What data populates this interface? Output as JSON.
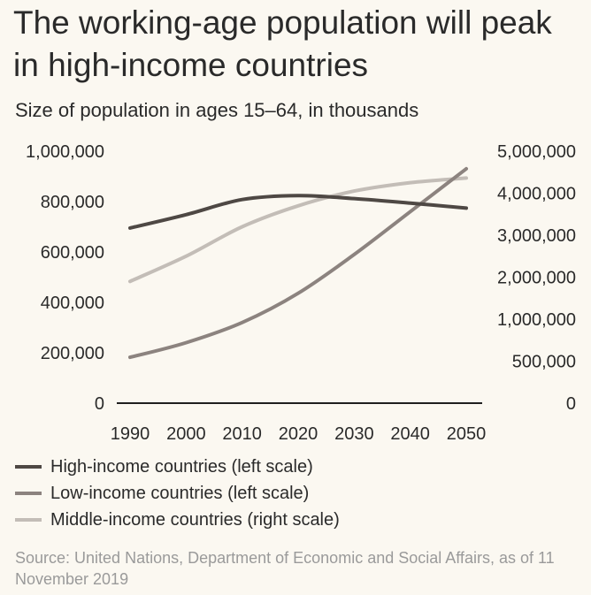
{
  "header": {
    "title": "The working-age population will peak in high-income countries",
    "subtitle": "Size of population in ages 15–64, in thousands"
  },
  "footer": {
    "source": "Source: United Nations, Department of Economic and Social Affairs, as of 11 November 2019"
  },
  "chart_data": {
    "type": "line",
    "title": "The working-age population will peak in high-income countries",
    "subtitle": "Size of population in ages 15–64, in thousands",
    "x": [
      1990,
      2000,
      2010,
      2020,
      2030,
      2040,
      2050
    ],
    "x_tick_labels": [
      "1990",
      "2000",
      "2010",
      "2020",
      "2030",
      "2040",
      "2050"
    ],
    "left_axis": {
      "ylim": [
        0,
        1000000
      ],
      "ticks": [
        0,
        200000,
        400000,
        600000,
        800000,
        1000000
      ],
      "tick_labels": [
        "0",
        "200,000",
        "400,000",
        "600,000",
        "800,000",
        "1,000,000"
      ]
    },
    "right_axis": {
      "ticks": [
        0,
        500000,
        1000000,
        2000000,
        3000000,
        4000000,
        5000000
      ],
      "tick_labels": [
        "0",
        "500,000",
        "1,000,000",
        "2,000,000",
        "3,000,000",
        "4,000,000",
        "5,000,000"
      ]
    },
    "grid": false,
    "legend_position": "bottom",
    "series": [
      {
        "name": "High-income countries (left scale)",
        "axis": "left",
        "color": "#4e4844",
        "values": [
          695000,
          748000,
          808000,
          824000,
          812000,
          794000,
          774000
        ]
      },
      {
        "name": "Low-income countries (left scale)",
        "axis": "left",
        "color": "#8c837f",
        "values": [
          182000,
          240000,
          320000,
          436000,
          590000,
          760000,
          930000
        ]
      },
      {
        "name": "Middle-income countries (right scale)",
        "axis": "right",
        "color": "#c3bdb7",
        "values": [
          1900000,
          2500000,
          3200000,
          3700000,
          4050000,
          4250000,
          4360000
        ]
      }
    ]
  }
}
